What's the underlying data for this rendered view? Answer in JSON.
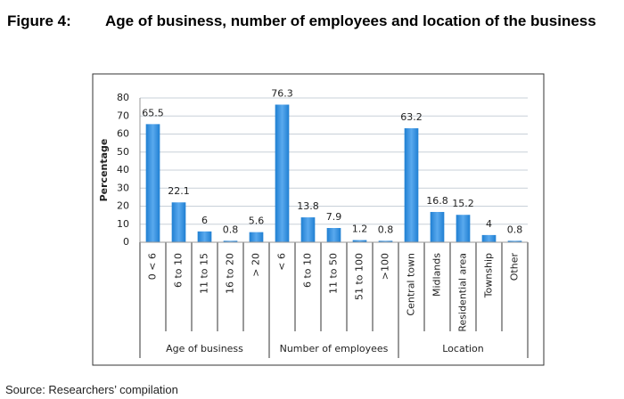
{
  "figure_label": "Figure 4:",
  "chart_data": {
    "type": "bar",
    "title": "Age of business, number of employees and location of the business",
    "y_label": "Percentage",
    "color": "#1f7fd2",
    "groups": [
      {
        "name": "Age of business",
        "categories": [
          "0 < 6",
          "6 to 10",
          "11 to 15",
          "16 to 20",
          "> 20"
        ],
        "values": [
          65.5,
          22.1,
          6,
          0.8,
          5.6
        ]
      },
      {
        "name": "Number of employees",
        "categories": [
          "< 6",
          "6 to 10",
          "11 to 50",
          "51 to 100",
          ">100"
        ],
        "values": [
          76.3,
          13.8,
          7.9,
          1.2,
          0.8
        ]
      },
      {
        "name": "Location",
        "categories": [
          "Central town",
          "Midlands",
          "Residential area",
          "Township",
          "Other"
        ],
        "values": [
          63.2,
          16.8,
          15.2,
          4,
          0.8
        ]
      }
    ],
    "ylim": [
      0,
      80
    ],
    "yticks": [
      0,
      10,
      20,
      30,
      40,
      50,
      60,
      70,
      80
    ],
    "grid": true
  },
  "source": "Source: Researchers’ compilation"
}
